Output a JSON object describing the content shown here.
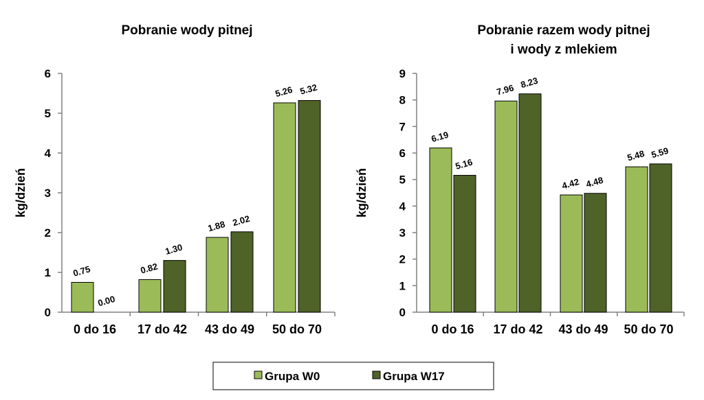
{
  "chart_data": [
    {
      "type": "bar",
      "title": [
        "Pobranie wody pitnej"
      ],
      "ylabel": "kg/dzień",
      "xlabel": "",
      "categories": [
        "0 do 16",
        "17 do 42",
        "43 do 49",
        "50 do 70"
      ],
      "ylim": [
        0,
        6
      ],
      "yticks": [
        "0",
        "1",
        "2",
        "3",
        "4",
        "5",
        "6"
      ],
      "series": [
        {
          "name": "Grupa W0",
          "values": [
            0.75,
            0.82,
            1.88,
            5.26
          ],
          "labels": [
            "0.75",
            "0.82",
            "1.88",
            "5.26"
          ],
          "color": "#9BBB59"
        },
        {
          "name": "Grupa W17",
          "values": [
            0.0,
            1.3,
            2.02,
            5.32
          ],
          "labels": [
            "0.00",
            "1.30",
            "2.02",
            "5.32"
          ],
          "color": "#4F6228"
        }
      ]
    },
    {
      "type": "bar",
      "title": [
        "Pobranie razem wody pitnej",
        "i wody z mlekiem"
      ],
      "ylabel": "kg/dzień",
      "xlabel": "",
      "categories": [
        "0 do 16",
        "17 do 42",
        "43 do 49",
        "50 do 70"
      ],
      "ylim": [
        0,
        9
      ],
      "yticks": [
        "0",
        "1",
        "2",
        "3",
        "4",
        "5",
        "6",
        "7",
        "8",
        "9"
      ],
      "series": [
        {
          "name": "Grupa W0",
          "values": [
            6.19,
            7.96,
            4.42,
            5.48
          ],
          "labels": [
            "6.19",
            "7.96",
            "4.42",
            "5.48"
          ],
          "color": "#9BBB59"
        },
        {
          "name": "Grupa W17",
          "values": [
            5.16,
            8.23,
            4.48,
            5.59
          ],
          "labels": [
            "5.16",
            "8.23",
            "4.48",
            "5.59"
          ],
          "color": "#4F6228"
        }
      ]
    }
  ],
  "legend": {
    "position": "bottom-center",
    "items": [
      {
        "label": "Grupa W0",
        "color": "#9BBB59"
      },
      {
        "label": "Grupa W17",
        "color": "#4F6228"
      }
    ]
  }
}
